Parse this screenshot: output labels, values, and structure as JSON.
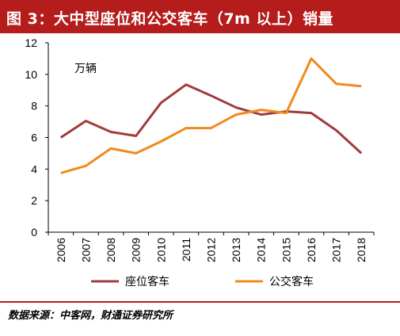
{
  "header": {
    "title": "图 3：大中型座位和公交客车（7m 以上）销量"
  },
  "source": {
    "text": "数据来源：中客网，财通证券研究所"
  },
  "colors": {
    "title_bg": "#b51c1c",
    "seat_bus": "#a23b3b",
    "transit_bus": "#f08a1e"
  },
  "chart_data": {
    "type": "line",
    "title": "",
    "unit_label": "万辆",
    "xlabel": "",
    "ylabel": "",
    "categories": [
      "2006",
      "2007",
      "2008",
      "2009",
      "2010",
      "2011",
      "2012",
      "2013",
      "2014",
      "2015",
      "2016",
      "2017",
      "2018"
    ],
    "series": [
      {
        "name": "座位客车",
        "color": "#a23b3b",
        "values": [
          6.0,
          7.05,
          6.35,
          6.1,
          8.2,
          9.35,
          8.65,
          7.9,
          7.45,
          7.65,
          7.55,
          6.45,
          5.0
        ]
      },
      {
        "name": "公交客车",
        "color": "#f08a1e",
        "values": [
          3.75,
          4.2,
          5.3,
          5.0,
          5.75,
          6.6,
          6.6,
          7.45,
          7.75,
          7.55,
          11.0,
          9.4,
          9.25
        ]
      }
    ],
    "ylim": [
      0,
      12
    ],
    "yticks": [
      "0",
      "2",
      "4",
      "6",
      "8",
      "10",
      "12"
    ],
    "grid": false,
    "legend": "bottom"
  }
}
